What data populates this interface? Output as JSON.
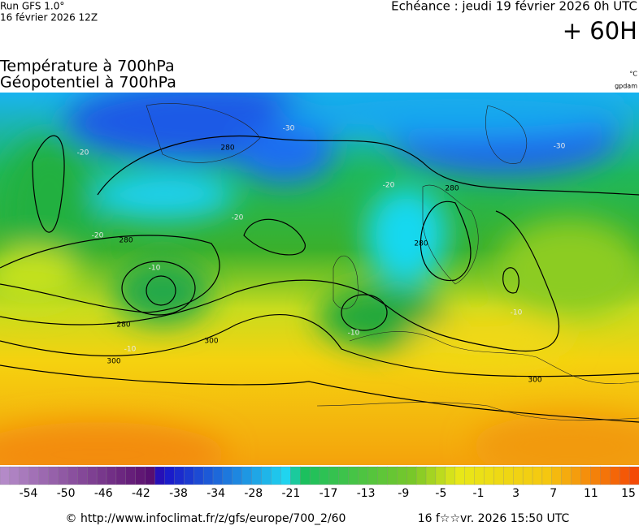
{
  "header": {
    "run": "Run GFS 1.0°",
    "date": "16 février 2026 12Z",
    "forecast": "Echéance : jeudi 19 février 2026 0h UTC",
    "lead": "+ 60H"
  },
  "titles": {
    "temperature": "Température à 700hPa",
    "geopotential": "Géopotentiel à 700hPa",
    "unit_temperature": "°C",
    "unit_geopotential": "gpdam"
  },
  "map": {
    "contour_labels": [
      280,
      280,
      280,
      300,
      300,
      300,
      280,
      280,
      -30,
      -30,
      -20,
      -20,
      -20,
      -20,
      -10,
      -10,
      -10,
      -10
    ]
  },
  "legend": {
    "labels": [
      -54,
      -50,
      -46,
      -42,
      -38,
      -34,
      -28,
      -21,
      -17,
      -13,
      -9,
      -5,
      -1,
      3,
      7,
      11,
      15
    ]
  },
  "footer": {
    "source": "© http://www.infoclimat.fr/z/gfs/europe/700_2/60",
    "generated": "16 f☆☆vr. 2026 15:50 UTC"
  }
}
